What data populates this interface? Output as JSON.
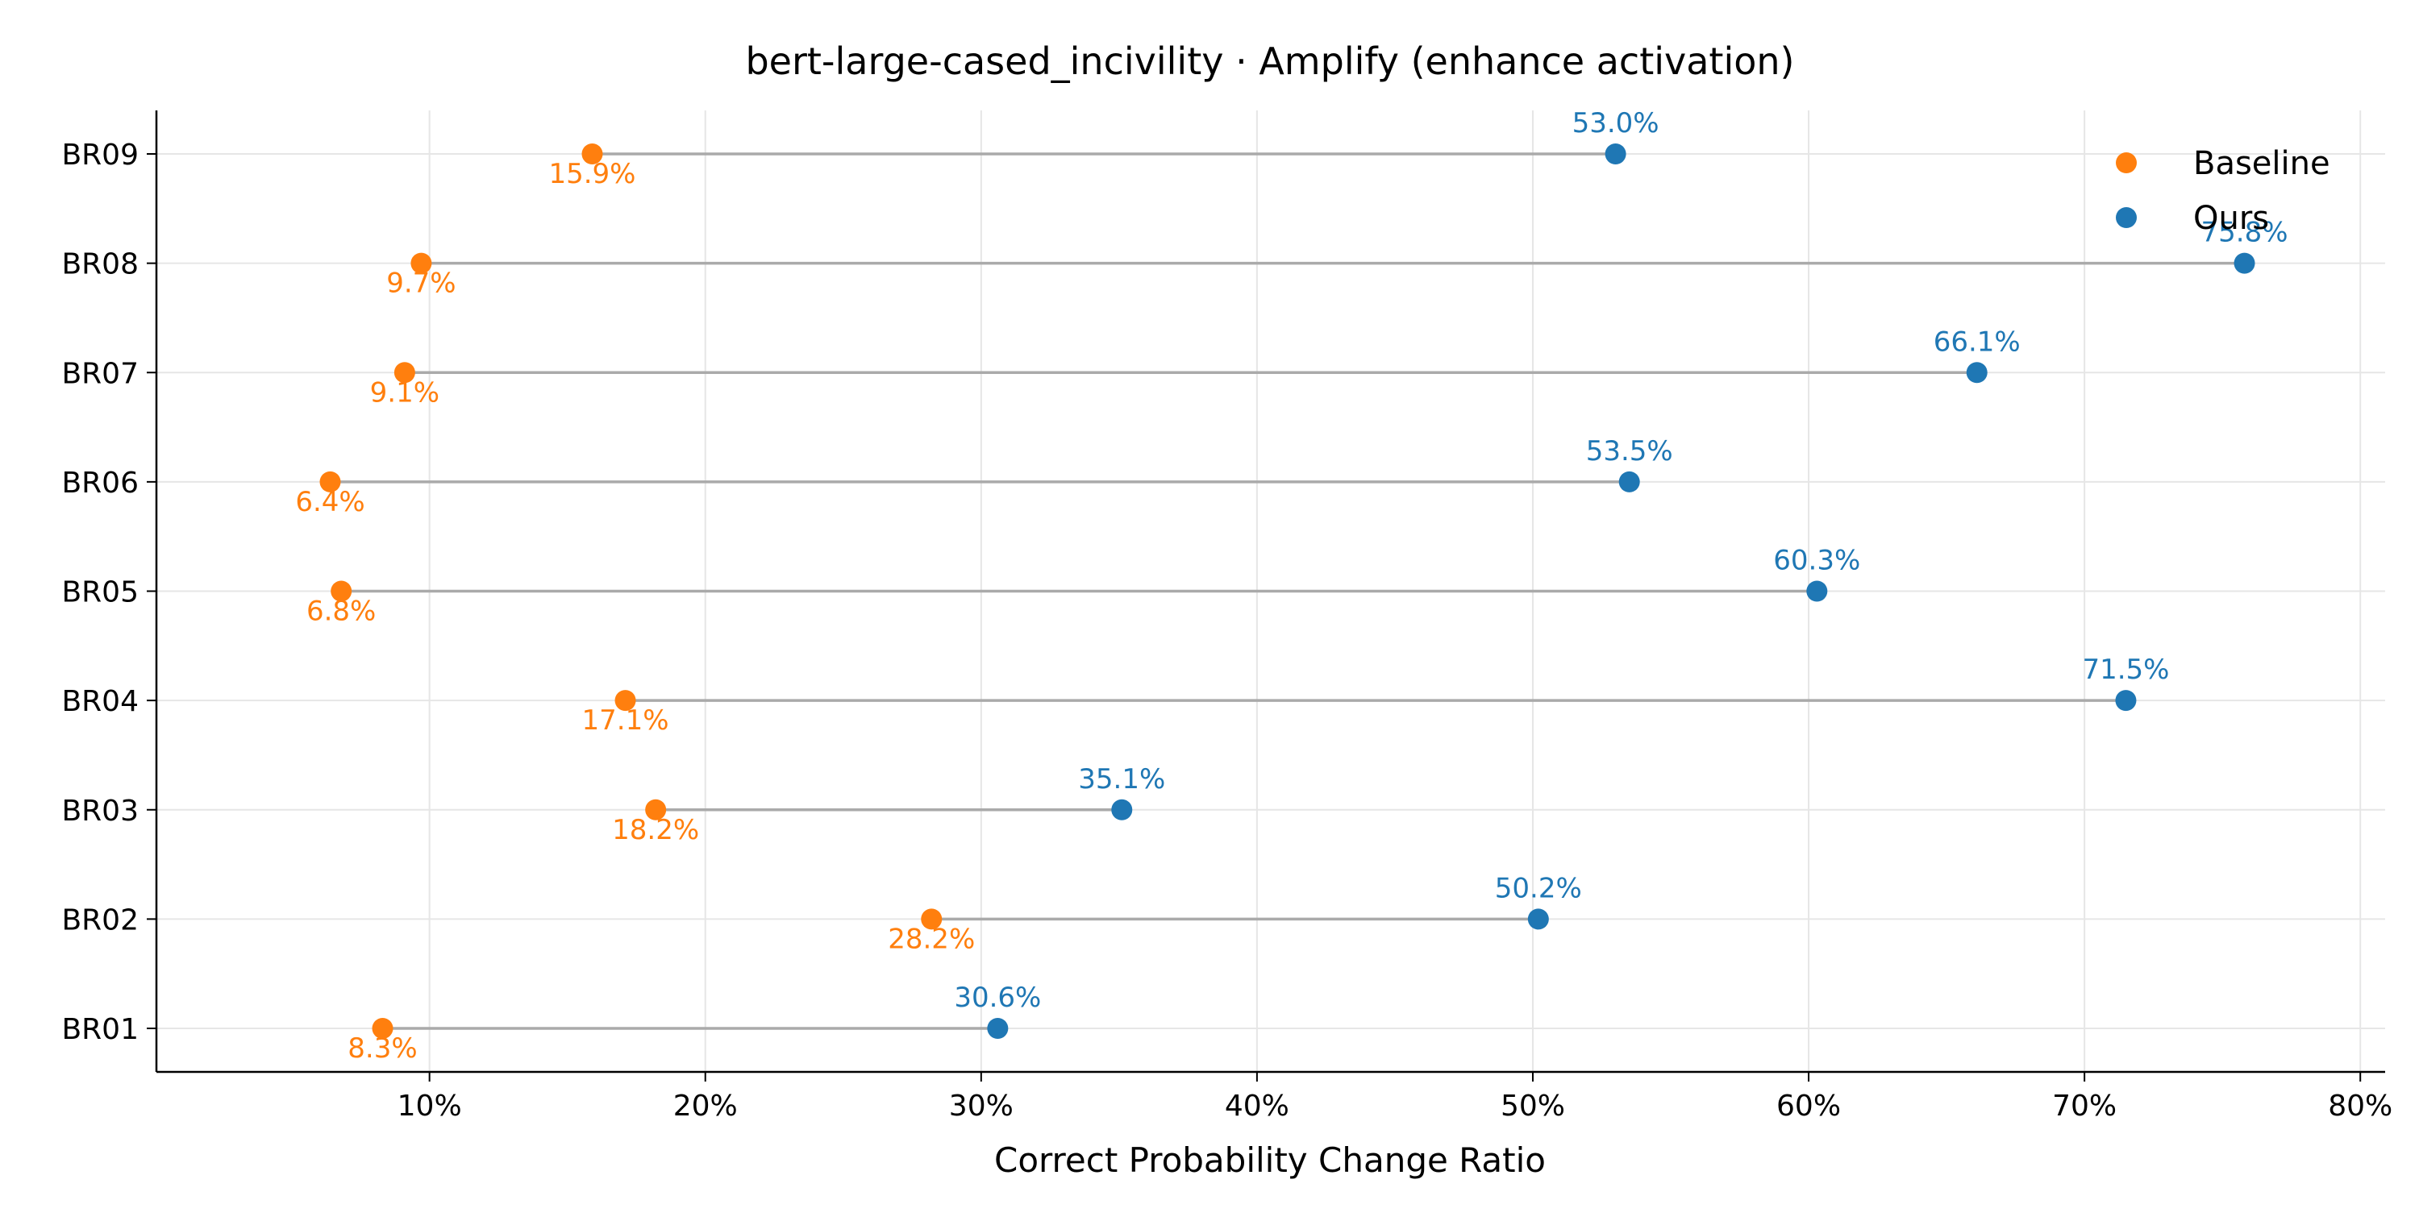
{
  "chart_data": {
    "type": "dumbbell",
    "title": "bert-large-cased_incivility · Amplify (enhance activation)",
    "xlabel": "Correct Probability Change Ratio",
    "ylabel": "",
    "xlim": [
      0.1,
      80.9
    ],
    "xticks": [
      10,
      20,
      30,
      40,
      50,
      60,
      70,
      80
    ],
    "xtick_labels": [
      "10%",
      "20%",
      "30%",
      "40%",
      "50%",
      "60%",
      "70%",
      "80%"
    ],
    "grid": true,
    "legend_position": "top-right",
    "categories": [
      "BR01",
      "BR02",
      "BR03",
      "BR04",
      "BR05",
      "BR06",
      "BR07",
      "BR08",
      "BR09"
    ],
    "series": [
      {
        "name": "Baseline",
        "color": "#ff7f0e",
        "values": [
          8.3,
          28.2,
          18.2,
          17.1,
          6.8,
          6.4,
          9.1,
          9.7,
          15.9
        ],
        "labels": [
          "8.3%",
          "28.2%",
          "18.2%",
          "17.1%",
          "6.8%",
          "6.4%",
          "9.1%",
          "9.7%",
          "15.9%"
        ]
      },
      {
        "name": "Ours",
        "color": "#1f77b4",
        "values": [
          30.6,
          50.2,
          35.1,
          71.5,
          60.3,
          53.5,
          66.1,
          75.8,
          53.0
        ],
        "labels": [
          "30.6%",
          "50.2%",
          "35.1%",
          "71.5%",
          "60.3%",
          "53.5%",
          "66.1%",
          "75.8%",
          "53.0%"
        ]
      }
    ],
    "connector_color": "#aaaaaa"
  }
}
